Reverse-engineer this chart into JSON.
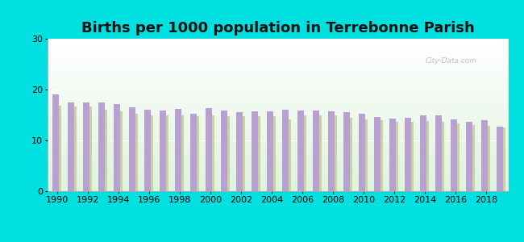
{
  "title": "Births per 1000 population in Terrebonne Parish",
  "years": [
    1990,
    1991,
    1992,
    1993,
    1994,
    1995,
    1996,
    1997,
    1998,
    1999,
    2000,
    2001,
    2002,
    2003,
    2004,
    2005,
    2006,
    2007,
    2008,
    2009,
    2010,
    2011,
    2012,
    2013,
    2014,
    2015,
    2016,
    2017,
    2018,
    2019
  ],
  "terrebonne": [
    19.1,
    17.5,
    17.5,
    17.5,
    17.1,
    16.5,
    16.0,
    15.8,
    16.2,
    15.3,
    16.3,
    15.8,
    15.5,
    15.7,
    15.7,
    16.0,
    15.8,
    15.8,
    15.7,
    15.5,
    15.3,
    14.6,
    14.3,
    14.4,
    15.0,
    15.0,
    14.2,
    13.7,
    13.9,
    12.7
  ],
  "louisiana": [
    16.8,
    16.6,
    16.6,
    16.0,
    15.7,
    15.2,
    15.0,
    15.0,
    15.0,
    14.8,
    15.0,
    14.8,
    14.8,
    14.8,
    14.7,
    14.2,
    15.0,
    15.0,
    14.9,
    14.5,
    14.2,
    13.9,
    13.7,
    13.7,
    13.8,
    13.6,
    13.4,
    13.0,
    12.8,
    12.5
  ],
  "terrebonne_color": "#b8a0d0",
  "louisiana_color": "#c8d4a0",
  "background_outer": "#00e0e0",
  "ylim": [
    0,
    30
  ],
  "yticks": [
    0,
    10,
    20,
    30
  ],
  "title_fontsize": 13,
  "legend_fontsize": 9,
  "tick_fontsize": 8,
  "watermark": "City-Data.com"
}
